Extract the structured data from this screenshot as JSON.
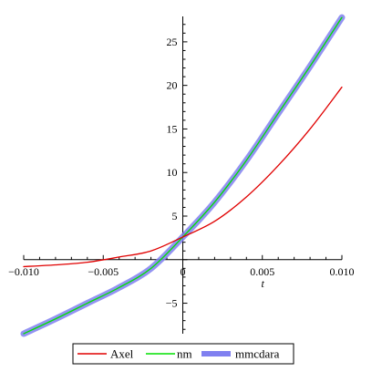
{
  "chart_data": {
    "type": "line",
    "xlabel": "t",
    "ylabel": "",
    "xlim": [
      -0.01,
      0.01
    ],
    "ylim": [
      -8.5,
      27.5
    ],
    "x_ticks": [
      {
        "value": -0.01,
        "label": "−0.010"
      },
      {
        "value": -0.005,
        "label": "−0.005"
      },
      {
        "value": 0,
        "label": "0"
      },
      {
        "value": 0.005,
        "label": "0.005"
      },
      {
        "value": 0.01,
        "label": "0.010"
      }
    ],
    "y_ticks": [
      {
        "value": -5,
        "label": "−5"
      },
      {
        "value": 5,
        "label": "5"
      },
      {
        "value": 10,
        "label": "10"
      },
      {
        "value": 15,
        "label": "15"
      },
      {
        "value": 20,
        "label": "20"
      },
      {
        "value": 25,
        "label": "25"
      }
    ],
    "legend": "bottom",
    "grid": false,
    "series": [
      {
        "name": "Axel",
        "color": "#e00000",
        "x": [
          -0.01,
          -0.008,
          -0.006,
          -0.004,
          -0.002,
          0.0,
          0.002,
          0.004,
          0.006,
          0.008,
          0.01
        ],
        "y": [
          -0.8,
          -0.6,
          -0.3,
          0.3,
          1.0,
          2.6,
          4.4,
          7.2,
          10.8,
          15.0,
          19.8
        ]
      },
      {
        "name": "nm",
        "color": "#00e000",
        "x": [
          -0.01,
          -0.008,
          -0.006,
          -0.004,
          -0.002,
          0.0,
          0.002,
          0.004,
          0.006,
          0.008,
          0.01
        ],
        "y": [
          -8.5,
          -6.8,
          -5.0,
          -3.2,
          -1.0,
          2.6,
          6.6,
          11.4,
          16.8,
          22.2,
          27.8
        ]
      },
      {
        "name": "mmcdara",
        "color": "#8080f0",
        "x": [
          -0.01,
          -0.008,
          -0.006,
          -0.004,
          -0.002,
          0.0,
          0.002,
          0.004,
          0.006,
          0.008,
          0.01
        ],
        "y": [
          -8.5,
          -6.8,
          -5.0,
          -3.2,
          -1.0,
          2.6,
          6.6,
          11.4,
          16.8,
          22.2,
          27.8
        ]
      }
    ]
  }
}
